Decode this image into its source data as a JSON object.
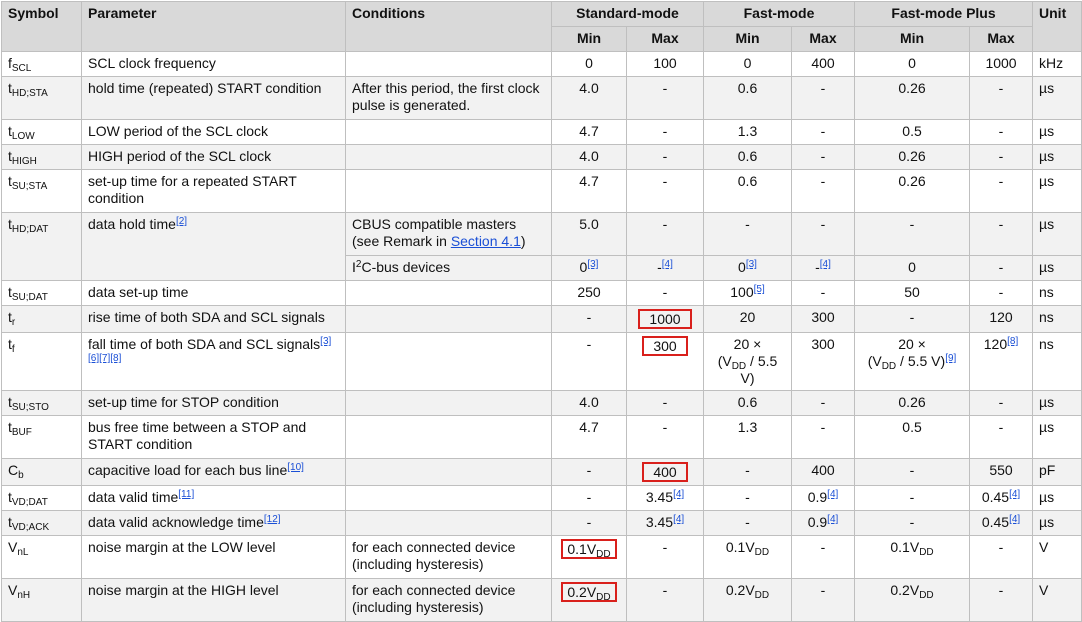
{
  "headers": {
    "symbol": "Symbol",
    "parameter": "Parameter",
    "conditions": "Conditions",
    "standard_mode": "Standard-mode",
    "fast_mode": "Fast-mode",
    "fast_mode_plus": "Fast-mode Plus",
    "unit": "Unit",
    "min": "Min",
    "max": "Max"
  },
  "rows": [
    {
      "sym": "f",
      "sub": "SCL",
      "param": "SCL clock frequency",
      "cond": "",
      "smin": "0",
      "smax": "100",
      "fmin": "0",
      "fmax": "400",
      "pmin": "0",
      "pmax": "1000",
      "unit": "kHz"
    },
    {
      "sym": "t",
      "sub": "HD;STA",
      "param": "hold time (repeated) START condition",
      "cond": "After this period, the first clock pulse is generated.",
      "smin": "4.0",
      "smax": "-",
      "fmin": "0.6",
      "fmax": "-",
      "pmin": "0.26",
      "pmax": "-",
      "unit": "µs"
    },
    {
      "sym": "t",
      "sub": "LOW",
      "param": "LOW period of the SCL clock",
      "cond": "",
      "smin": "4.7",
      "smax": "-",
      "fmin": "1.3",
      "fmax": "-",
      "pmin": "0.5",
      "pmax": "-",
      "unit": "µs"
    },
    {
      "sym": "t",
      "sub": "HIGH",
      "param": "HIGH period of the SCL clock",
      "cond": "",
      "smin": "4.0",
      "smax": "-",
      "fmin": "0.6",
      "fmax": "-",
      "pmin": "0.26",
      "pmax": "-",
      "unit": "µs"
    },
    {
      "sym": "t",
      "sub": "SU;STA",
      "param": "set-up time for a repeated START condition",
      "cond": "",
      "smin": "4.7",
      "smax": "-",
      "fmin": "0.6",
      "fmax": "-",
      "pmin": "0.26",
      "pmax": "-",
      "unit": "µs"
    },
    {
      "sym": "t",
      "sub": "HD;DAT",
      "param": "data hold time",
      "param_ref": "[2]",
      "cond_a": "CBUS compatible masters (see Remark in ",
      "cond_link": "Section 4.1",
      "cond_b": ")",
      "smin": "5.0",
      "smax": "-",
      "fmin": "-",
      "fmax": "-",
      "pmin": "-",
      "pmax": "-",
      "unit": "µs"
    },
    {
      "cond_pre": "I",
      "cond_sup": "2",
      "cond_post": "C-bus devices",
      "smin": "0",
      "smin_ref": "[3]",
      "smax": "-",
      "smax_ref": "[4]",
      "fmin": "0",
      "fmin_ref": "[3]",
      "fmax": "-",
      "fmax_ref": "[4]",
      "pmin": "0",
      "pmax": "-",
      "unit": "µs"
    },
    {
      "sym": "t",
      "sub": "SU;DAT",
      "param": "data set-up time",
      "cond": "",
      "smin": "250",
      "smax": "-",
      "fmin": "100",
      "fmin_ref": "[5]",
      "fmax": "-",
      "pmin": "50",
      "pmax": "-",
      "unit": "ns"
    },
    {
      "sym": "t",
      "sub": "r",
      "param": "rise time of both SDA and SCL signals",
      "cond": "",
      "smin": "-",
      "smax": "1000",
      "fmin": "20",
      "fmax": "300",
      "pmin": "-",
      "pmax": "120",
      "unit": "ns"
    },
    {
      "sym": "t",
      "sub": "f",
      "param": "fall time of both SDA and SCL signals",
      "param_ref": "[3][6][7][8]",
      "cond": "",
      "smin": "-",
      "smax": "300",
      "fmin_a": "20 ×",
      "fmin_b1": "(V",
      "fmin_sub": "DD",
      "fmin_b2": " / 5.5 V)",
      "fmax": "300",
      "pmin_a": "20 ×",
      "pmin_b1": "(V",
      "pmin_sub": "DD",
      "pmin_b2": " / 5.5 V)",
      "pmin_ref": "[9]",
      "pmax": "120",
      "pmax_ref": "[8]",
      "unit": "ns"
    },
    {
      "sym": "t",
      "sub": "SU;STO",
      "param": "set-up time for STOP condition",
      "cond": "",
      "smin": "4.0",
      "smax": "-",
      "fmin": "0.6",
      "fmax": "-",
      "pmin": "0.26",
      "pmax": "-",
      "unit": "µs"
    },
    {
      "sym": "t",
      "sub": "BUF",
      "param": "bus free time between a STOP and START condition",
      "cond": "",
      "smin": "4.7",
      "smax": "-",
      "fmin": "1.3",
      "fmax": "-",
      "pmin": "0.5",
      "pmax": "-",
      "unit": "µs"
    },
    {
      "sym": "C",
      "sub": "b",
      "param": "capacitive load for each bus line",
      "param_ref": "[10]",
      "cond": "",
      "smin": "-",
      "smax": "400",
      "fmin": "-",
      "fmax": "400",
      "pmin": "-",
      "pmax": "550",
      "unit": "pF"
    },
    {
      "sym": "t",
      "sub": "VD;DAT",
      "param": "data valid time",
      "param_ref": "[11]",
      "cond": "",
      "smin": "-",
      "smax": "3.45",
      "smax_ref": "[4]",
      "fmin": "-",
      "fmax": "0.9",
      "fmax_ref": "[4]",
      "pmin": "-",
      "pmax": "0.45",
      "pmax_ref": "[4]",
      "unit": "µs"
    },
    {
      "sym": "t",
      "sub": "VD;ACK",
      "param": "data valid acknowledge time",
      "param_ref": "[12]",
      "cond": "",
      "smin": "-",
      "smax": "3.45",
      "smax_ref": "[4]",
      "fmin": "-",
      "fmax": "0.9",
      "fmax_ref": "[4]",
      "pmin": "-",
      "pmax": "0.45",
      "pmax_ref": "[4]",
      "unit": "µs"
    },
    {
      "sym": "V",
      "sub": "nL",
      "param": "noise margin at the LOW level",
      "cond": "for each connected device (including hysteresis)",
      "smin": "0.1V",
      "smin_sub": "DD",
      "smax": "-",
      "fmin": "0.1V",
      "fmin_sub": "DD",
      "fmax": "-",
      "pmin": "0.1V",
      "pmin_sub": "DD",
      "pmax": "-",
      "unit": "V"
    },
    {
      "sym": "V",
      "sub": "nH",
      "param": "noise margin at the HIGH level",
      "cond": "for each connected device (including hysteresis)",
      "smin": "0.2V",
      "smin_sub": "DD",
      "smax": "-",
      "fmin": "0.2V",
      "fmin_sub": "DD",
      "fmax": "-",
      "pmin": "0.2V",
      "pmin_sub": "DD",
      "pmax": "-",
      "unit": "V"
    }
  ],
  "highlight_color": "#d9201c"
}
